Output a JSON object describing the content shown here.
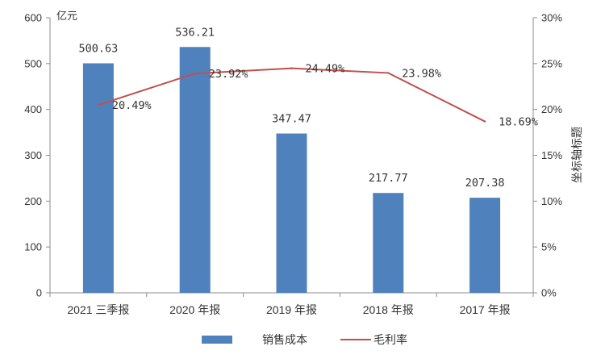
{
  "chart_data": {
    "type": "bar+line",
    "categories": [
      "2021 三季报",
      "2020 年报",
      "2019 年报",
      "2018 年报",
      "2017 年报"
    ],
    "series": [
      {
        "name": "销售成本",
        "type": "bar",
        "axis": "left",
        "color": "#4f81bd",
        "values": [
          500.63,
          536.21,
          347.47,
          217.77,
          207.38
        ],
        "labels": [
          "500.63",
          "536.21",
          "347.47",
          "217.77",
          "207.38"
        ]
      },
      {
        "name": "毛利率",
        "type": "line",
        "axis": "right",
        "color": "#c0504d",
        "values": [
          20.49,
          23.92,
          24.49,
          23.98,
          18.69
        ],
        "labels": [
          "20.49%",
          "23.92%",
          "24.49%",
          "23.98%",
          "18.69%"
        ]
      }
    ],
    "left_axis": {
      "unit": "亿元",
      "min": 0,
      "max": 600,
      "ticks": [
        "0",
        "100",
        "200",
        "300",
        "400",
        "500",
        "600"
      ]
    },
    "right_axis": {
      "title": "坐标轴标题",
      "min": 0,
      "max": 30,
      "ticks": [
        "0%",
        "5%",
        "10%",
        "15%",
        "20%",
        "25%",
        "30%"
      ]
    },
    "legend": {
      "position": "bottom",
      "items": [
        "销售成本",
        "毛利率"
      ]
    },
    "grid": false
  }
}
